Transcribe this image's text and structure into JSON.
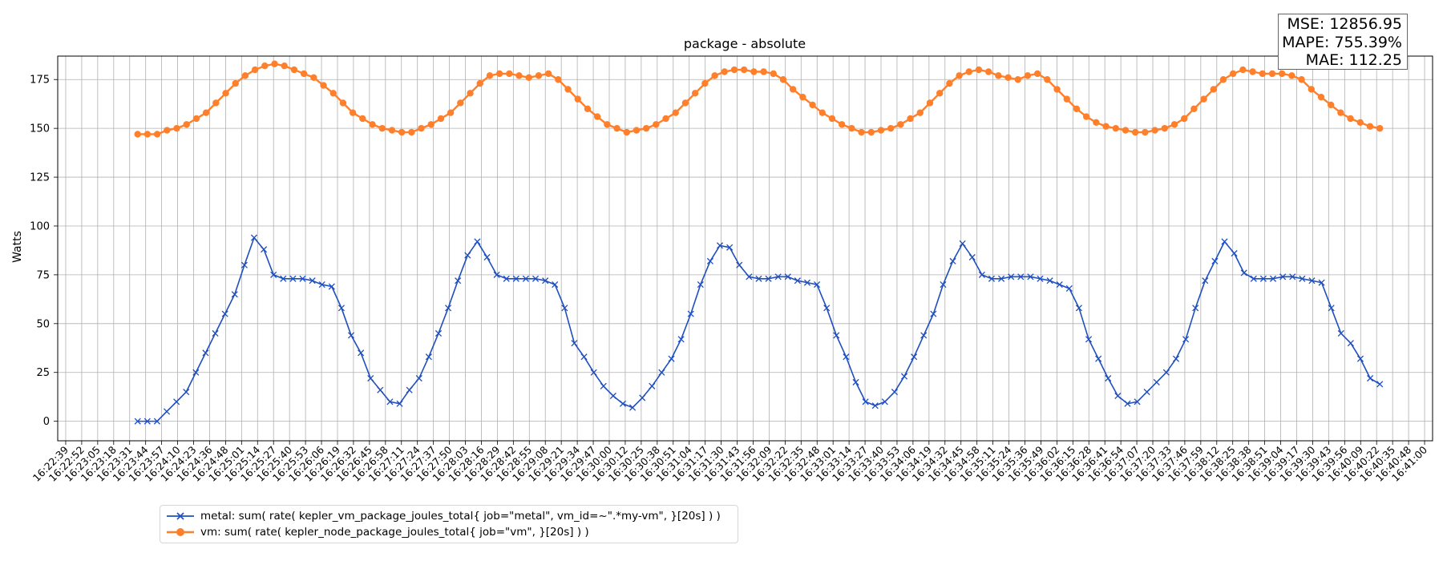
{
  "chart_data": {
    "type": "line",
    "title": "package - absolute",
    "xlabel": "",
    "ylabel": "Watts",
    "ylim": [
      -10,
      187
    ],
    "yticks": [
      0,
      25,
      50,
      75,
      100,
      125,
      150,
      175
    ],
    "grid": true,
    "x_tick_labels": [
      "16:22:39",
      "16:22:52",
      "16:23:05",
      "16:23:18",
      "16:23:31",
      "16:23:44",
      "16:23:57",
      "16:24:10",
      "16:24:23",
      "16:24:36",
      "16:24:48",
      "16:25:01",
      "16:25:14",
      "16:25:27",
      "16:25:40",
      "16:25:53",
      "16:26:06",
      "16:26:19",
      "16:26:32",
      "16:26:45",
      "16:26:58",
      "16:27:11",
      "16:27:24",
      "16:27:37",
      "16:27:50",
      "16:28:03",
      "16:28:16",
      "16:28:29",
      "16:28:42",
      "16:28:55",
      "16:29:08",
      "16:29:21",
      "16:29:34",
      "16:29:47",
      "16:30:00",
      "16:30:12",
      "16:30:25",
      "16:30:38",
      "16:30:51",
      "16:31:04",
      "16:31:17",
      "16:31:30",
      "16:31:43",
      "16:31:56",
      "16:32:09",
      "16:32:22",
      "16:32:35",
      "16:32:48",
      "16:33:01",
      "16:33:14",
      "16:33:27",
      "16:33:40",
      "16:33:53",
      "16:34:06",
      "16:34:19",
      "16:34:32",
      "16:34:45",
      "16:34:58",
      "16:35:11",
      "16:35:24",
      "16:35:36",
      "16:35:49",
      "16:36:02",
      "16:36:15",
      "16:36:28",
      "16:36:41",
      "16:36:54",
      "16:37:07",
      "16:37:20",
      "16:37:33",
      "16:37:46",
      "16:37:59",
      "16:38:12",
      "16:38:25",
      "16:38:38",
      "16:38:51",
      "16:39:04",
      "16:39:17",
      "16:39:30",
      "16:39:43",
      "16:39:56",
      "16:40:09",
      "16:40:22",
      "16:40:35",
      "16:40:48",
      "16:41:00"
    ],
    "x_first_point_tick": 4.5,
    "x_last_point_tick": 82.2,
    "legend_position": "lower-left, below axes",
    "series": [
      {
        "name": "metal: sum( rate( kepler_vm_package_joules_total{ job=\"metal\", vm_id=~\".*my-vm\", }[20s] ) )",
        "color": "#1f4fbf",
        "marker": "x",
        "values": [
          0,
          0,
          0,
          5,
          10,
          15,
          25,
          35,
          45,
          55,
          65,
          80,
          94,
          88,
          75,
          73,
          73,
          73,
          72,
          70,
          69,
          58,
          44,
          35,
          22,
          16,
          10,
          9,
          16,
          22,
          33,
          45,
          58,
          72,
          85,
          92,
          84,
          75,
          73,
          73,
          73,
          73,
          72,
          70,
          58,
          40,
          33,
          25,
          18,
          13,
          9,
          7,
          12,
          18,
          25,
          32,
          42,
          55,
          70,
          82,
          90,
          89,
          80,
          74,
          73,
          73,
          74,
          74,
          72,
          71,
          70,
          58,
          44,
          33,
          20,
          10,
          8,
          10,
          15,
          23,
          33,
          44,
          55,
          70,
          82,
          91,
          84,
          75,
          73,
          73,
          74,
          74,
          74,
          73,
          72,
          70,
          68,
          58,
          42,
          32,
          22,
          13,
          9,
          10,
          15,
          20,
          25,
          32,
          42,
          58,
          72,
          82,
          92,
          86,
          76,
          73,
          73,
          73,
          74,
          74,
          73,
          72,
          71,
          58,
          45,
          40,
          32,
          22,
          19
        ]
      },
      {
        "name": "vm: sum( rate( kepler_node_package_joules_total{ job=\"vm\", }[20s] ) )",
        "color": "#ff7f2a",
        "marker": "o",
        "values": [
          147,
          147,
          147,
          149,
          150,
          152,
          155,
          158,
          163,
          168,
          173,
          177,
          180,
          182,
          183,
          182,
          180,
          178,
          176,
          172,
          168,
          163,
          158,
          155,
          152,
          150,
          149,
          148,
          148,
          150,
          152,
          155,
          158,
          163,
          168,
          173,
          177,
          178,
          178,
          177,
          176,
          177,
          178,
          175,
          170,
          165,
          160,
          156,
          152,
          150,
          148,
          149,
          150,
          152,
          155,
          158,
          163,
          168,
          173,
          177,
          179,
          180,
          180,
          179,
          179,
          178,
          175,
          170,
          166,
          162,
          158,
          155,
          152,
          150,
          148,
          148,
          149,
          150,
          152,
          155,
          158,
          163,
          168,
          173,
          177,
          179,
          180,
          179,
          177,
          176,
          175,
          177,
          178,
          175,
          170,
          165,
          160,
          156,
          153,
          151,
          150,
          149,
          148,
          148,
          149,
          150,
          152,
          155,
          160,
          165,
          170,
          175,
          178,
          180,
          179,
          178,
          178,
          178,
          177,
          175,
          170,
          166,
          162,
          158,
          155,
          153,
          151,
          150
        ]
      }
    ],
    "stats": [
      "MSE: 12856.95",
      "MAPE: 755.39%",
      "MAE: 112.25"
    ]
  }
}
